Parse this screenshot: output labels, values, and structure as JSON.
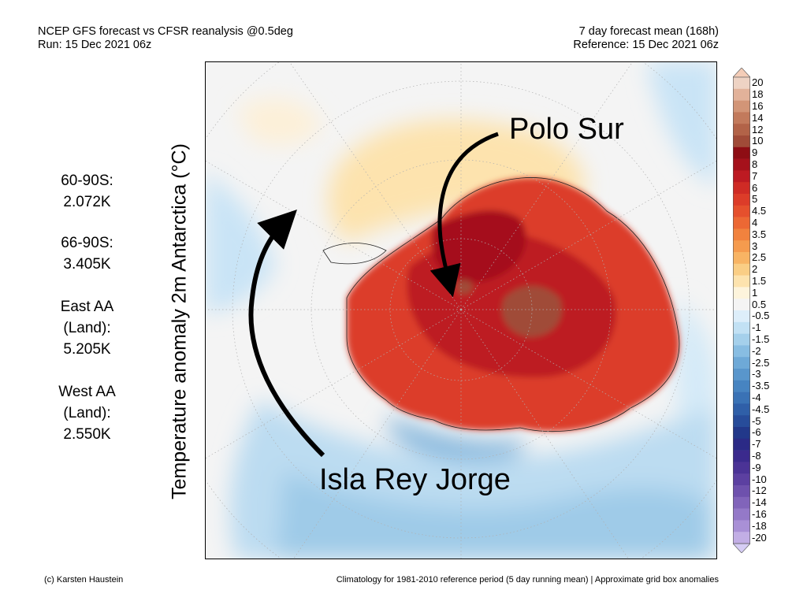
{
  "header": {
    "left_line1": "NCEP GFS forecast vs CFSR reanalysis @0.5deg",
    "left_line2": "Run: 15 Dec 2021 06z",
    "right_line1": "7 day forecast mean (168h)",
    "right_line2": "Reference: 15 Dec 2021 06z"
  },
  "stats": [
    {
      "label": "60-90S:",
      "value": "2.072K"
    },
    {
      "label": "66-90S:",
      "value": "3.405K"
    },
    {
      "label": "East AA",
      "label2": "(Land):",
      "value": "5.205K"
    },
    {
      "label": "West AA",
      "label2": "(Land):",
      "value": "2.550K"
    }
  ],
  "y_axis_label": "Temperature anomaly 2m Antarctica (°C)",
  "annotations": {
    "polo_sur": "Polo Sur",
    "isla_rey_jorge": "Isla Rey Jorge"
  },
  "legend": {
    "ticks": [
      "20",
      "18",
      "16",
      "14",
      "12",
      "10",
      "9",
      "8",
      "7",
      "6",
      "5",
      "4.5",
      "4",
      "3.5",
      "3",
      "2.5",
      "2",
      "1.5",
      "1",
      "0.5",
      "-0.5",
      "-1",
      "-1.5",
      "-2",
      "-2.5",
      "-3",
      "-3.5",
      "-4",
      "-4.5",
      "-5",
      "-6",
      "-7",
      "-8",
      "-9",
      "-10",
      "-12",
      "-14",
      "-16",
      "-18",
      "-20"
    ],
    "colors": [
      "#eed3c4",
      "#e2b29a",
      "#d29577",
      "#c27a5c",
      "#b26348",
      "#a04b38",
      "#8e0d14",
      "#a5111b",
      "#bd1a22",
      "#cf2b25",
      "#dc3c29",
      "#e5502d",
      "#ec6834",
      "#f1823e",
      "#f59b4e",
      "#f8b464",
      "#face85",
      "#fde3ae",
      "#fdf4dc",
      "#f4f4f4",
      "#ddeefa",
      "#c2e1f4",
      "#a5d0eb",
      "#88bde2",
      "#6ea9d7",
      "#5996cc",
      "#4784c1",
      "#3a72b5",
      "#2f5fa8",
      "#274c9a",
      "#22388a",
      "#2b2a86",
      "#3b2a8d",
      "#4b3396",
      "#5c40a1",
      "#6e51ad",
      "#8164ba",
      "#9479c8",
      "#a990d6",
      "#c2aee5"
    ],
    "top_color": "#f4cdb8",
    "bottom_color": "#d6cdf5"
  },
  "footer": {
    "left": "(c) Karsten Haustein",
    "right": "Climatology for 1981-2010 reference period (5 day running mean) | Approximate grid box anomalies"
  }
}
